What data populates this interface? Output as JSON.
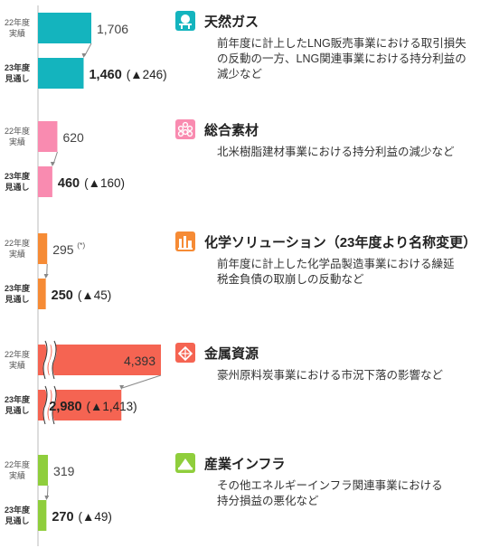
{
  "labels": {
    "prev": [
      "22年度",
      "実績"
    ],
    "curr": [
      "23年度",
      "見通し"
    ]
  },
  "chart_data": {
    "type": "bar",
    "orientation": "horizontal",
    "categories": [
      "22年度 実績",
      "23年度 見通し"
    ],
    "segments": [
      {
        "name": "天然ガス",
        "color": "#14b4be",
        "icon": "gas-plant-icon",
        "prev": 1706,
        "prev_text": "1,706",
        "curr": 1460,
        "curr_text": "1,460",
        "change_text": "(▲246)",
        "note": "",
        "description": [
          "前年度に計上したLNG販売事業における取引損失",
          "の反動の一方、LNG関連事業における持分利益の",
          "減少など"
        ],
        "broken_axis": false
      },
      {
        "name": "総合素材",
        "color": "#f98bb0",
        "icon": "materials-icon",
        "prev": 620,
        "prev_text": "620",
        "curr": 460,
        "curr_text": "460",
        "change_text": "(▲160)",
        "note": "",
        "description": [
          "北米樹脂建材事業における持分利益の減少など"
        ],
        "broken_axis": false
      },
      {
        "name": "化学ソリューション（23年度より名称変更）",
        "color": "#f68b35",
        "icon": "chemical-plant-icon",
        "prev": 295,
        "prev_text": "295",
        "curr": 250,
        "curr_text": "250",
        "change_text": "(▲45)",
        "note": "(*)",
        "description": [
          "前年度に計上した化学品製造事業における繰延",
          "税金負債の取崩しの反動など"
        ],
        "broken_axis": false
      },
      {
        "name": "金属資源",
        "color": "#f56452",
        "icon": "mining-icon",
        "prev": 4393,
        "prev_text": "4,393",
        "curr": 2980,
        "curr_text": "2,980",
        "change_text": "(▲1,413)",
        "note": "",
        "description": [
          "豪州原料炭事業における市況下落の影響など"
        ],
        "broken_axis": true
      },
      {
        "name": "産業インフラ",
        "color": "#8fce3c",
        "icon": "infrastructure-icon",
        "prev": 319,
        "prev_text": "319",
        "curr": 270,
        "curr_text": "270",
        "change_text": "(▲49)",
        "note": "",
        "description": [
          "その他エネルギーインフラ関連事業における",
          "持分損益の悪化など"
        ],
        "broken_axis": false
      }
    ]
  }
}
